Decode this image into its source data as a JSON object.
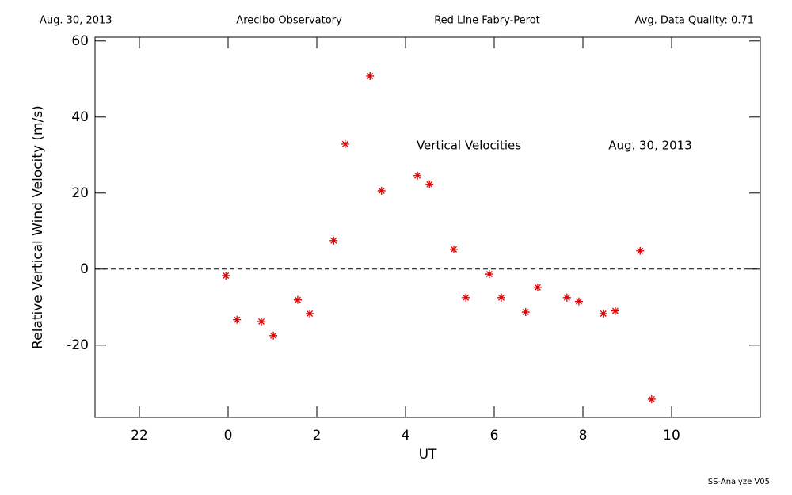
{
  "header": {
    "date": "Aug. 30, 2013",
    "site": "Arecibo Observatory",
    "instrument": "Red Line Fabry-Perot",
    "quality": "Avg. Data Quality: 0.71"
  },
  "chart_data": {
    "type": "scatter",
    "title": "Vertical Velocities",
    "subtitle": "Aug. 30, 2013",
    "x_label": "UT",
    "y_label": "Relative Vertical Wind Velocity (m/s)",
    "x": [
      -0.05,
      0.2,
      0.75,
      1.02,
      1.57,
      1.84,
      2.38,
      2.64,
      3.2,
      3.46,
      4.27,
      4.54,
      5.09,
      5.36,
      5.89,
      6.16,
      6.71,
      6.98,
      7.64,
      7.91,
      8.46,
      8.73,
      9.29,
      9.55
    ],
    "values": [
      -1.7,
      -13.3,
      -13.8,
      -17.5,
      -8.1,
      -11.7,
      7.5,
      32.9,
      50.8,
      20.6,
      24.6,
      22.3,
      5.2,
      -7.5,
      -1.3,
      -7.5,
      -11.3,
      -4.8,
      -7.5,
      -8.5,
      -11.7,
      -11.0,
      4.8,
      -34.2
    ],
    "color": "#dd0000",
    "xlim": [
      -3,
      12
    ],
    "xticks": [
      {
        "value": -2,
        "label": "22"
      },
      0,
      2,
      4,
      6,
      8,
      10
    ],
    "ylim": [
      -39,
      61
    ],
    "yticks": [
      -20,
      0,
      20,
      40,
      60
    ],
    "hline": 0
  },
  "footer": "SS-Analyze V05"
}
